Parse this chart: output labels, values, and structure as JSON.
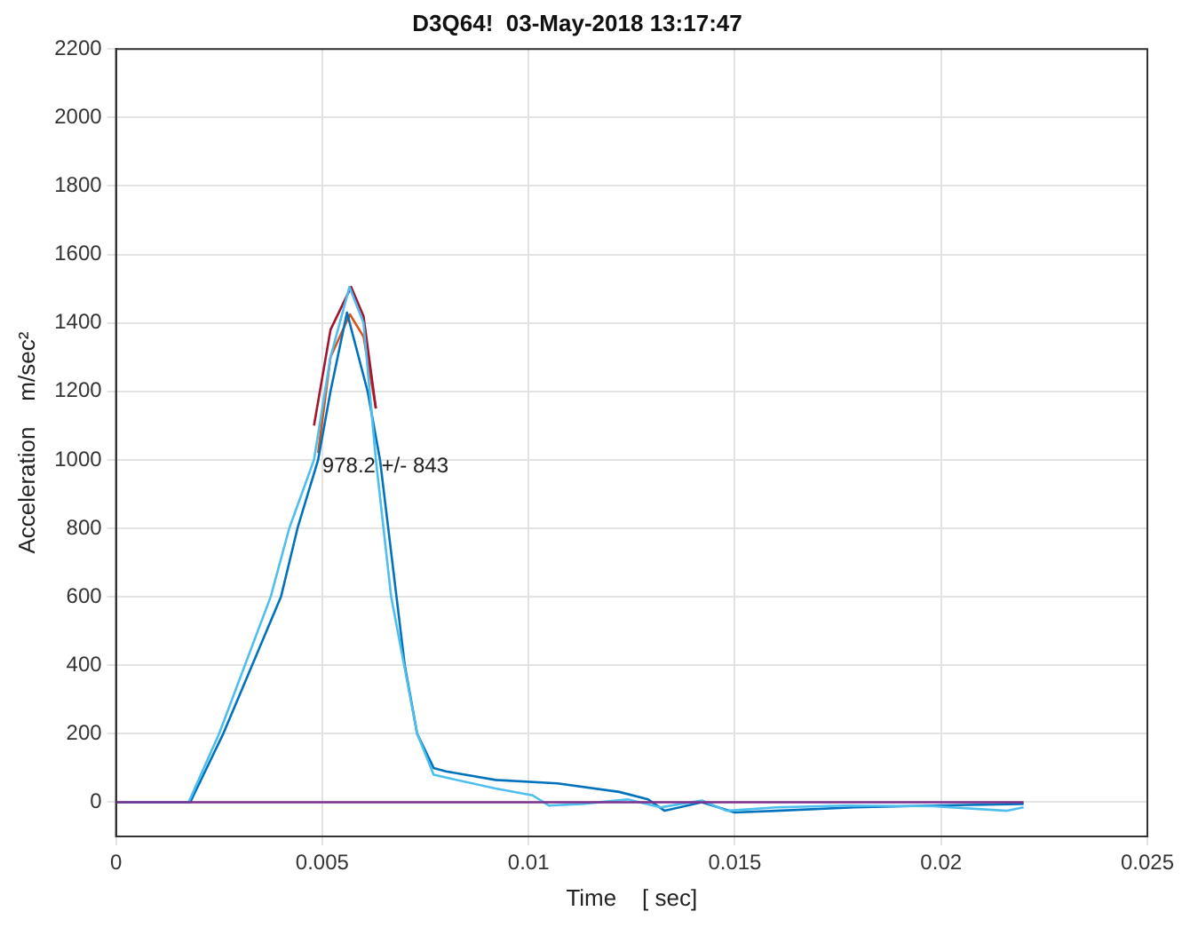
{
  "chart_data": {
    "type": "line",
    "title": "D3Q64!  03-May-2018 13:17:47",
    "xlabel": "Time    [ sec]",
    "ylabel": "Acceleration    m/sec²",
    "xlim": [
      0,
      0.025
    ],
    "xticks": [
      0,
      0.005,
      0.01,
      0.015,
      0.02,
      0.025
    ],
    "ylim": [
      -100,
      2200
    ],
    "yticks": [
      0,
      200,
      400,
      600,
      800,
      1000,
      1200,
      1400,
      1600,
      1800,
      2000,
      2200
    ],
    "grid": true,
    "legend": false,
    "marker": "none",
    "line_style": "solid",
    "annotations": [
      {
        "text": "978.2 +/- 843",
        "x": 0.005,
        "y": 980
      }
    ],
    "series": [
      {
        "color": "#7e2f8e",
        "x": [
          0,
          0.005,
          0.01,
          0.015,
          0.022
        ],
        "values": [
          0,
          0,
          0,
          0,
          0
        ]
      },
      {
        "color": "#4dbeee",
        "x": [
          0,
          0.00176,
          0.0025,
          0.00375,
          0.0042,
          0.0048,
          0.0052,
          0.00566,
          0.006,
          0.0063,
          0.00667,
          0.0073,
          0.0077,
          0.0092,
          0.0101,
          0.0105,
          0.0113,
          0.0124,
          0.0132,
          0.0142,
          0.0148,
          0.016,
          0.0177,
          0.0198,
          0.0216,
          0.022
        ],
        "values": [
          0,
          0,
          200,
          600,
          800,
          1000,
          1300,
          1505,
          1400,
          1000,
          600,
          200,
          80,
          40,
          20,
          -10,
          -5,
          8,
          -15,
          5,
          -25,
          -15,
          -10,
          -12,
          -25,
          -15
        ]
      },
      {
        "color": "#0072bd",
        "x": [
          0,
          0.0018,
          0.0026,
          0.004,
          0.0044,
          0.0049,
          0.0052,
          0.0056,
          0.0061,
          0.0064,
          0.0068,
          0.007,
          0.0073,
          0.0077,
          0.008,
          0.0092,
          0.0107,
          0.0122,
          0.0129,
          0.0133,
          0.0142,
          0.015,
          0.016,
          0.0179,
          0.0198,
          0.022
        ],
        "values": [
          0,
          0,
          200,
          600,
          800,
          1000,
          1200,
          1430,
          1200,
          1000,
          600,
          400,
          200,
          100,
          90,
          65,
          55,
          30,
          8,
          -25,
          0,
          -30,
          -25,
          -15,
          -10,
          -5
        ]
      },
      {
        "color": "#a2142f",
        "x": [
          0.0048,
          0.0052,
          0.0057,
          0.006,
          0.0063
        ],
        "values": [
          1100,
          1380,
          1505,
          1420,
          1150
        ]
      },
      {
        "color": "#d95319",
        "x": [
          0.0049,
          0.0052,
          0.00567,
          0.006,
          0.0063
        ],
        "values": [
          1020,
          1300,
          1425,
          1360,
          1150
        ]
      }
    ]
  }
}
